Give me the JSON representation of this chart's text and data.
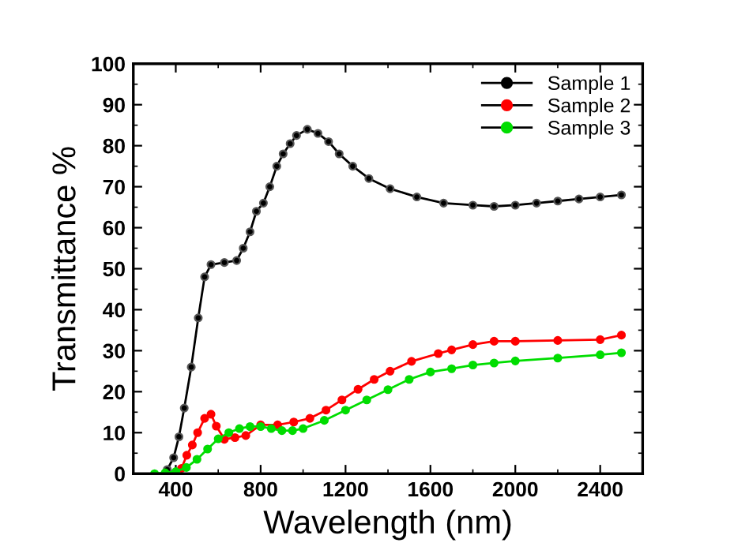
{
  "chart_data": {
    "type": "line",
    "xlabel": "Wavelength (nm)",
    "ylabel": "Transmittance %",
    "xlim": [
      200,
      2600
    ],
    "xticks": [
      400,
      800,
      1200,
      1600,
      2000,
      2400
    ],
    "ylim": [
      0,
      100
    ],
    "yticks": [
      0,
      10,
      20,
      30,
      40,
      50,
      60,
      70,
      80,
      90,
      100
    ],
    "marker": "circle",
    "line_style": "solid",
    "legend": "top right",
    "grid": false,
    "series": [
      {
        "name": "Sample 1",
        "color": "#000000",
        "x": [
          360,
          390,
          415,
          440,
          473,
          506,
          536,
          566,
          629,
          687,
          718,
          750,
          780,
          813,
          843,
          876,
          906,
          939,
          969,
          1020,
          1070,
          1120,
          1170,
          1234,
          1310,
          1410,
          1536,
          1662,
          1800,
          1900,
          2000,
          2100,
          2200,
          2300,
          2400,
          2500
        ],
        "values": [
          1,
          3.9,
          9,
          16,
          26,
          38,
          48,
          51,
          51.5,
          52,
          55,
          59,
          64,
          66,
          70,
          75,
          78,
          80.5,
          82.5,
          84,
          83,
          81,
          78,
          75,
          72,
          69.5,
          67.5,
          66,
          65.5,
          65.2,
          65.5,
          66,
          66.5,
          67,
          67.5,
          68
        ]
      },
      {
        "name": "Sample 2",
        "color": "#ff0000",
        "x": [
          427,
          452,
          478,
          503,
          536,
          566,
          591,
          629,
          679,
          730,
          800,
          880,
          956,
          1032,
          1108,
          1183,
          1259,
          1335,
          1410,
          1511,
          1637,
          1700,
          1800,
          1900,
          2000,
          2200,
          2400,
          2500
        ],
        "values": [
          1.3,
          4.5,
          7,
          10,
          13.5,
          14.5,
          11.6,
          8.4,
          8.8,
          9.3,
          11.9,
          11.9,
          12.6,
          13.5,
          15.5,
          18,
          20.6,
          23,
          25,
          27.4,
          29.3,
          30.2,
          31.5,
          32.3,
          32.3,
          32.5,
          32.7,
          33.8
        ]
      },
      {
        "name": "Sample 3",
        "color": "#00dd00",
        "x": [
          300,
          350,
          400,
          450,
          500,
          550,
          600,
          650,
          700,
          750,
          800,
          850,
          900,
          950,
          1000,
          1100,
          1200,
          1300,
          1400,
          1500,
          1600,
          1700,
          1800,
          1900,
          2000,
          2200,
          2400,
          2500
        ],
        "values": [
          0,
          0.2,
          0.5,
          1.5,
          3.5,
          6,
          8.5,
          10,
          11,
          11.5,
          11.5,
          11,
          10.5,
          10.5,
          11,
          13,
          15.5,
          18,
          20.5,
          23,
          24.8,
          25.6,
          26.5,
          27,
          27.5,
          28.2,
          29,
          29.5
        ]
      }
    ]
  }
}
